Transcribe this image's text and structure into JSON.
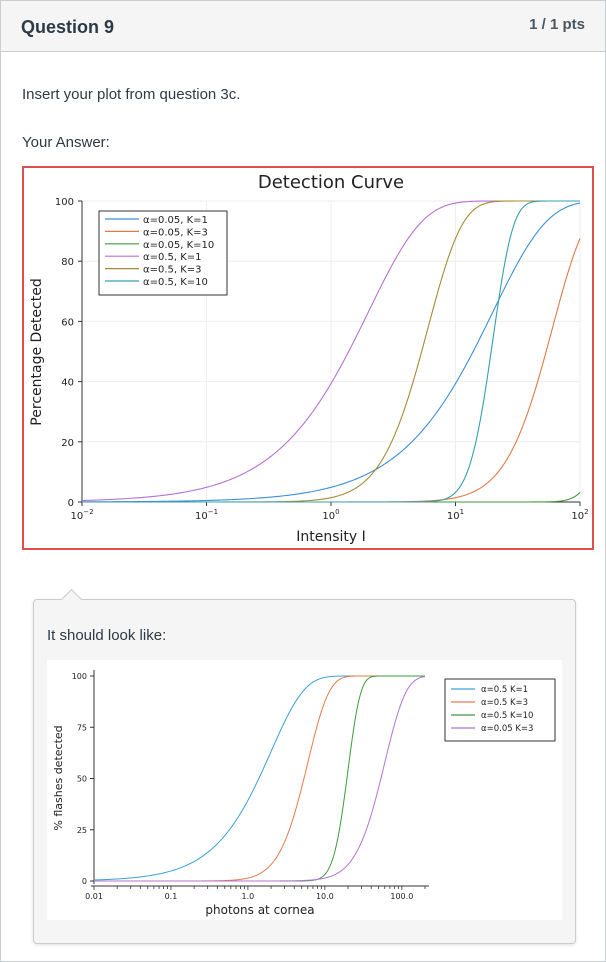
{
  "question": {
    "title": "Question 9",
    "points": "1 / 1 pts",
    "prompt": "Insert your plot from question 3c.",
    "answer_label": "Your Answer:",
    "comment_text": "It should look like:"
  },
  "colors": {
    "answer_border": "#e0504a",
    "header_bg": "#f5f5f5",
    "text": "#2d3b45"
  },
  "chart_data": [
    {
      "type": "line",
      "title": "Detection Curve",
      "xlabel": "Intensity I",
      "ylabel": "Percentage Detected",
      "xscale": "log",
      "xlim": [
        0.01,
        100
      ],
      "ylim": [
        0,
        100
      ],
      "yticks": [
        "0",
        "20",
        "40",
        "60",
        "80",
        "100"
      ],
      "xticks": [
        {
          "base": "10",
          "exp": "−2"
        },
        {
          "base": "10",
          "exp": "−1"
        },
        {
          "base": "10",
          "exp": "0"
        },
        {
          "base": "10",
          "exp": "1"
        },
        {
          "base": "10",
          "exp": "2"
        }
      ],
      "grid": true,
      "legend_position": "top-left",
      "series": [
        {
          "name": "α=0.05, K=1",
          "alpha": 0.05,
          "K": 1,
          "color": "#3d8fd4"
        },
        {
          "name": "α=0.05, K=3",
          "alpha": 0.05,
          "K": 3,
          "color": "#e07a45"
        },
        {
          "name": "α=0.05, K=10",
          "alpha": 0.05,
          "K": 10,
          "color": "#3e9a3e"
        },
        {
          "name": "α=0.5, K=1",
          "alpha": 0.5,
          "K": 1,
          "color": "#b672d4"
        },
        {
          "name": "α=0.5, K=3",
          "alpha": 0.5,
          "K": 3,
          "color": "#a88a35"
        },
        {
          "name": "α=0.5, K=10",
          "alpha": 0.5,
          "K": 10,
          "color": "#35a0b0"
        }
      ]
    },
    {
      "type": "line",
      "title": "",
      "xlabel": "photons at cornea",
      "ylabel": "% flashes detected",
      "xscale": "log",
      "xlim": [
        0.01,
        200
      ],
      "ylim": [
        0,
        100
      ],
      "yticks": [
        "0",
        "25",
        "50",
        "75",
        "100"
      ],
      "xticks": [
        "0.01",
        "0.1",
        "1.0",
        "10.0",
        "100.0"
      ],
      "grid": false,
      "legend_position": "top-right",
      "series": [
        {
          "name": "α=0.5 K=1",
          "alpha": 0.5,
          "K": 1,
          "color": "#3d9fd8"
        },
        {
          "name": "α=0.5 K=3",
          "alpha": 0.5,
          "K": 3,
          "color": "#e67a4a"
        },
        {
          "name": "α=0.5 K=10",
          "alpha": 0.5,
          "K": 10,
          "color": "#3e9a3e"
        },
        {
          "name": "α=0.05 K=3",
          "alpha": 0.05,
          "K": 3,
          "color": "#b672d4"
        }
      ]
    }
  ]
}
